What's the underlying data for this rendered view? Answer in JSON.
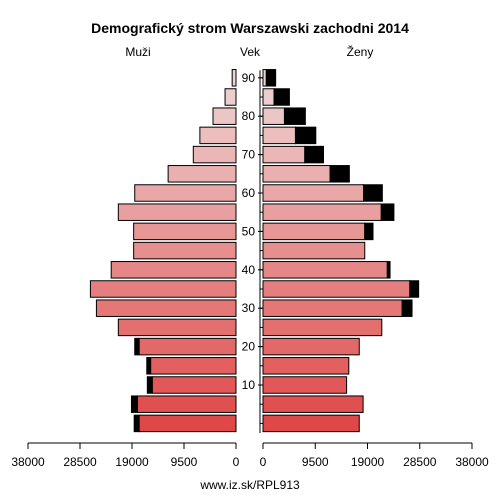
{
  "chart_data": {
    "type": "bar",
    "title": "Demografický strom Warszawski zachodni 2014",
    "left_label": "Muži",
    "center_label": "Vek",
    "right_label": "Ženy",
    "footer": "www.iz.sk/RPL913",
    "age_groups": [
      "0-4",
      "5-9",
      "10-14",
      "15-19",
      "20-24",
      "25-29",
      "30-34",
      "35-39",
      "40-44",
      "45-49",
      "50-54",
      "55-59",
      "60-64",
      "65-69",
      "70-74",
      "75-79",
      "80-84",
      "85-89",
      "90+"
    ],
    "age_ticks": [
      "10",
      "20",
      "30",
      "40",
      "50",
      "60",
      "70",
      "80",
      "90"
    ],
    "axis_ticks_left": [
      "38000",
      "28500",
      "19000",
      "9500",
      "0"
    ],
    "axis_ticks_right": [
      "0",
      "9500",
      "19000",
      "28500",
      "38000"
    ],
    "xlim": [
      0,
      38000
    ],
    "males_base": [
      17700,
      18000,
      15300,
      15600,
      17700,
      21500,
      25500,
      26600,
      22800,
      18700,
      18700,
      21500,
      18500,
      12400,
      7800,
      6600,
      4200,
      2000,
      700
    ],
    "males_excess": [
      900,
      1100,
      900,
      700,
      800,
      0,
      0,
      0,
      0,
      0,
      0,
      0,
      0,
      0,
      0,
      0,
      0,
      0,
      0
    ],
    "females_base": [
      17500,
      18200,
      15200,
      15600,
      17500,
      21600,
      25300,
      26700,
      22600,
      18500,
      18500,
      21500,
      18300,
      12200,
      7600,
      5900,
      3900,
      2000,
      600
    ],
    "females_excess": [
      0,
      0,
      0,
      0,
      0,
      0,
      1800,
      1600,
      500,
      0,
      1500,
      2300,
      3400,
      3500,
      3400,
      3700,
      3800,
      2800,
      1700
    ]
  }
}
